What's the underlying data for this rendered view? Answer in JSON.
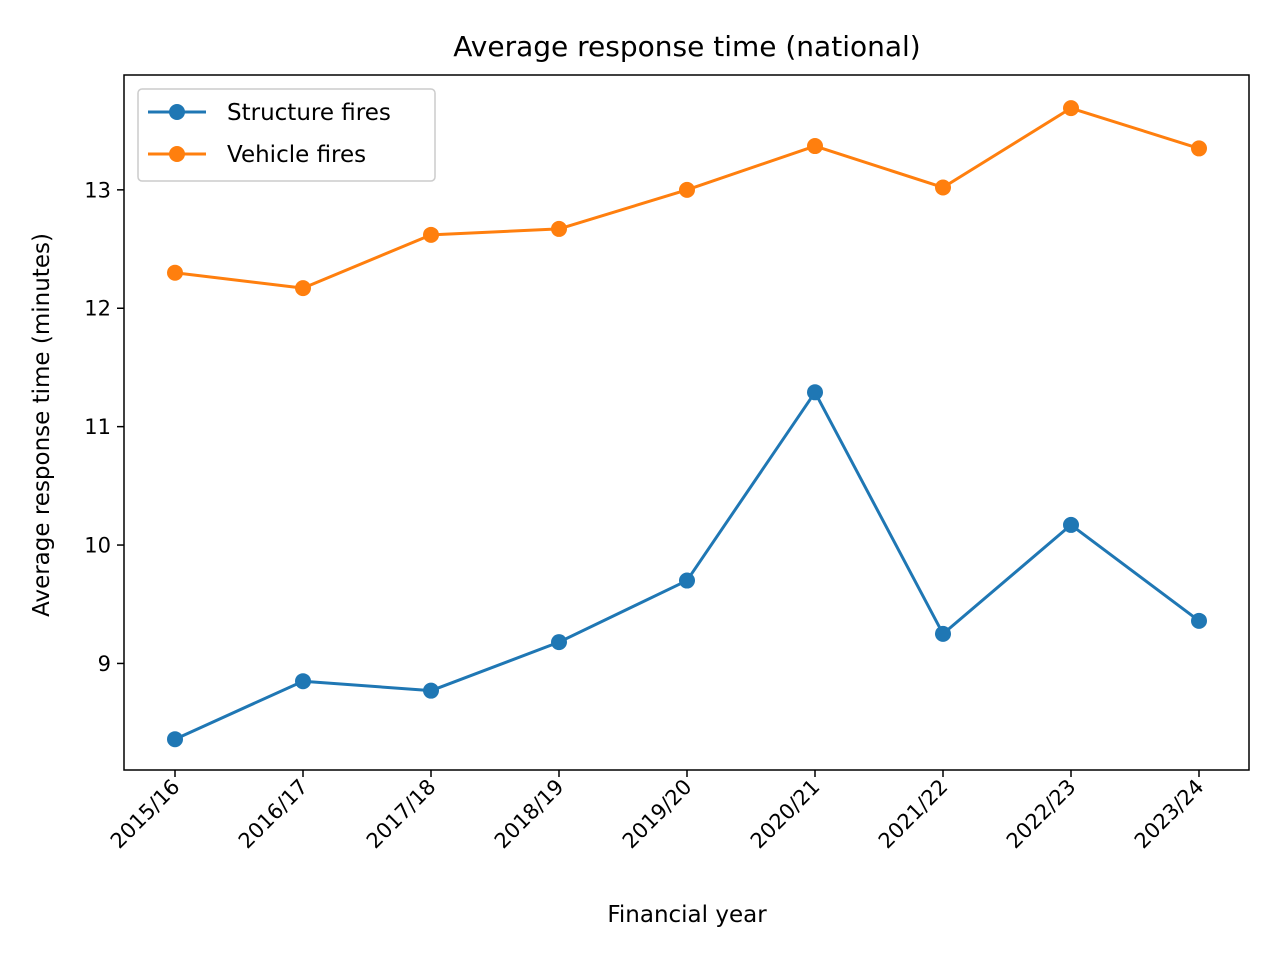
{
  "chart_data": {
    "type": "line",
    "title": "Average response time (national)",
    "xlabel": "Financial year",
    "ylabel": "Average response time (minutes)",
    "categories": [
      "2015/16",
      "2016/17",
      "2017/18",
      "2018/19",
      "2019/20",
      "2020/21",
      "2021/22",
      "2022/23",
      "2023/24"
    ],
    "ylim": [
      8.1,
      13.97
    ],
    "yticks": [
      9,
      10,
      11,
      12,
      13
    ],
    "grid": false,
    "legend_position": "top-left",
    "series": [
      {
        "name": "Structure fires",
        "color": "#1f77b4",
        "marker": "circle",
        "values": [
          8.36,
          8.85,
          8.77,
          9.18,
          9.7,
          11.29,
          9.25,
          10.17,
          9.36
        ]
      },
      {
        "name": "Vehicle fires",
        "color": "#ff7f0e",
        "marker": "circle",
        "values": [
          12.3,
          12.17,
          12.62,
          12.67,
          13.0,
          13.37,
          13.02,
          13.69,
          13.35
        ]
      }
    ]
  }
}
